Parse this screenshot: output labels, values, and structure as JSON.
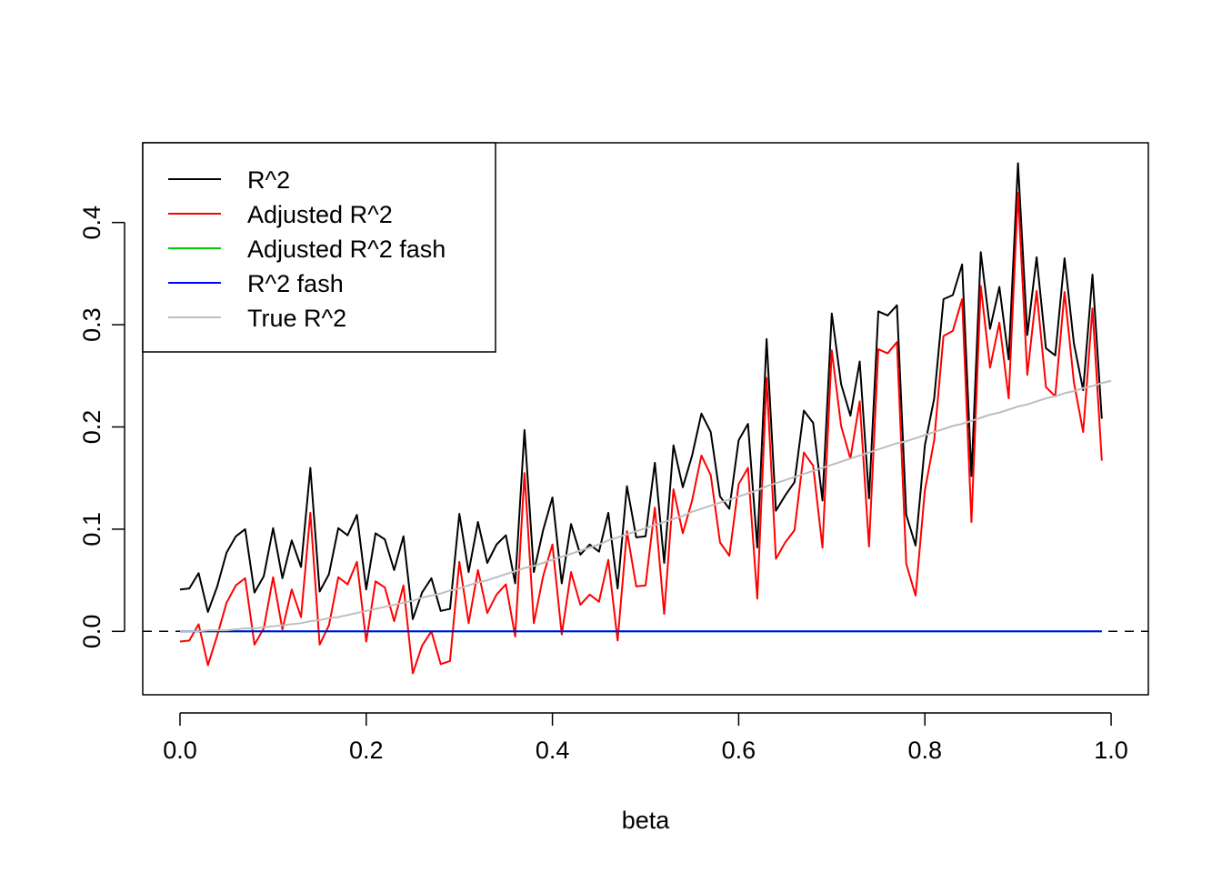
{
  "chart_data": {
    "type": "line",
    "title": "",
    "xlabel": "beta",
    "ylabel": "",
    "xlim": [
      -0.04,
      1.04
    ],
    "ylim": [
      -0.062,
      0.478
    ],
    "x_ticks": [
      0.0,
      0.2,
      0.4,
      0.6,
      0.8,
      1.0
    ],
    "x_tick_labels": [
      "0.0",
      "0.2",
      "0.4",
      "0.6",
      "0.8",
      "1.0"
    ],
    "y_ticks": [
      0.0,
      0.1,
      0.2,
      0.3,
      0.4
    ],
    "y_tick_labels": [
      "0.0",
      "0.1",
      "0.2",
      "0.3",
      "0.4"
    ],
    "x_start": 0.0,
    "x_step": 0.01,
    "reference_line": {
      "y": 0.0,
      "style": "dashed",
      "color": "#000000"
    },
    "legend_position": "top-left",
    "series": [
      {
        "name": "R^2",
        "color": "#000000",
        "values": [
          0.041,
          0.042,
          0.057,
          0.019,
          0.044,
          0.077,
          0.093,
          0.1,
          0.038,
          0.054,
          0.101,
          0.052,
          0.089,
          0.063,
          0.16,
          0.039,
          0.056,
          0.101,
          0.094,
          0.114,
          0.041,
          0.096,
          0.09,
          0.06,
          0.093,
          0.012,
          0.038,
          0.052,
          0.02,
          0.022,
          0.115,
          0.058,
          0.107,
          0.067,
          0.085,
          0.094,
          0.047,
          0.197,
          0.058,
          0.099,
          0.131,
          0.047,
          0.105,
          0.075,
          0.085,
          0.078,
          0.116,
          0.042,
          0.142,
          0.092,
          0.093,
          0.165,
          0.067,
          0.182,
          0.141,
          0.172,
          0.213,
          0.195,
          0.132,
          0.12,
          0.187,
          0.203,
          0.082,
          0.286,
          0.118,
          0.133,
          0.146,
          0.216,
          0.204,
          0.128,
          0.311,
          0.242,
          0.211,
          0.264,
          0.13,
          0.313,
          0.309,
          0.319,
          0.114,
          0.084,
          0.182,
          0.228,
          0.325,
          0.329,
          0.359,
          0.152,
          0.371,
          0.296,
          0.337,
          0.266,
          0.458,
          0.29,
          0.366,
          0.277,
          0.27,
          0.365,
          0.282,
          0.236,
          0.349,
          0.208
        ]
      },
      {
        "name": "Adjusted R^2",
        "color": "#ff0000",
        "values": [
          -0.01,
          -0.009,
          0.007,
          -0.033,
          -0.004,
          0.028,
          0.045,
          0.052,
          -0.013,
          0.003,
          0.053,
          0.002,
          0.041,
          0.014,
          0.116,
          -0.013,
          0.006,
          0.053,
          0.046,
          0.068,
          -0.01,
          0.049,
          0.043,
          0.01,
          0.045,
          -0.041,
          -0.014,
          0.0,
          -0.032,
          -0.029,
          0.068,
          0.008,
          0.06,
          0.018,
          0.036,
          0.046,
          -0.005,
          0.155,
          0.008,
          0.054,
          0.085,
          -0.003,
          0.058,
          0.026,
          0.036,
          0.029,
          0.07,
          -0.009,
          0.098,
          0.044,
          0.045,
          0.121,
          0.017,
          0.139,
          0.096,
          0.128,
          0.172,
          0.153,
          0.087,
          0.074,
          0.144,
          0.16,
          0.032,
          0.248,
          0.071,
          0.087,
          0.099,
          0.175,
          0.162,
          0.082,
          0.275,
          0.201,
          0.169,
          0.225,
          0.083,
          0.276,
          0.272,
          0.283,
          0.066,
          0.035,
          0.138,
          0.187,
          0.289,
          0.294,
          0.325,
          0.107,
          0.338,
          0.258,
          0.302,
          0.228,
          0.429,
          0.251,
          0.333,
          0.239,
          0.23,
          0.332,
          0.244,
          0.195,
          0.316,
          0.167
        ]
      },
      {
        "name": "Adjusted R^2 fash",
        "color": "#00cd00",
        "values": [
          0,
          0,
          0,
          0,
          0,
          0,
          0,
          0,
          0,
          0,
          0,
          0,
          0,
          0,
          0,
          0,
          0,
          0,
          0,
          0,
          0,
          0,
          0,
          0,
          0,
          0,
          0,
          0,
          0,
          0,
          0,
          0,
          0,
          0,
          0,
          0,
          0,
          0,
          0,
          0,
          0,
          0,
          0,
          0,
          0,
          0,
          0,
          0,
          0,
          0,
          0,
          0,
          0,
          0,
          0,
          0,
          0,
          0,
          0,
          0,
          0,
          0,
          0,
          0,
          0,
          0,
          0,
          0,
          0,
          0,
          0,
          0,
          0,
          0,
          0,
          0,
          0,
          0,
          0,
          0,
          0,
          0,
          0,
          0,
          0,
          0,
          0,
          0,
          0,
          0,
          0,
          0,
          0,
          0,
          0,
          0,
          0,
          0,
          0,
          0
        ]
      },
      {
        "name": "R^2 fash",
        "color": "#0000ff",
        "values": [
          0,
          0,
          0,
          0,
          0,
          0,
          0,
          0,
          0,
          0,
          0,
          0,
          0,
          0,
          0,
          0,
          0,
          0,
          0,
          0,
          0,
          0,
          0,
          0,
          0,
          0,
          0,
          0,
          0,
          0,
          0,
          0,
          0,
          0,
          0,
          0,
          0,
          0,
          0,
          0,
          0,
          0,
          0,
          0,
          0,
          0,
          0,
          0,
          0,
          0,
          0,
          0,
          0,
          0,
          0,
          0,
          0,
          0,
          0,
          0,
          0,
          0,
          0,
          0,
          0,
          0,
          0,
          0,
          0,
          0,
          0,
          0,
          0,
          0,
          0,
          0,
          0,
          0,
          0,
          0,
          0,
          0,
          0,
          0,
          0,
          0,
          0,
          0,
          0,
          0,
          0,
          0,
          0,
          0,
          0,
          0,
          0,
          0,
          0,
          0
        ]
      },
      {
        "name": "True R^2",
        "color": "#bebebe",
        "values": [
          0.0,
          0.0,
          0.0,
          0.001,
          0.001,
          0.001,
          0.002,
          0.003,
          0.003,
          0.004,
          0.005,
          0.006,
          0.007,
          0.008,
          0.01,
          0.011,
          0.013,
          0.014,
          0.016,
          0.018,
          0.02,
          0.022,
          0.024,
          0.026,
          0.028,
          0.03,
          0.033,
          0.035,
          0.037,
          0.04,
          0.042,
          0.045,
          0.048,
          0.05,
          0.053,
          0.056,
          0.059,
          0.062,
          0.064,
          0.067,
          0.07,
          0.073,
          0.076,
          0.079,
          0.082,
          0.085,
          0.089,
          0.092,
          0.095,
          0.098,
          0.101,
          0.104,
          0.107,
          0.11,
          0.113,
          0.117,
          0.12,
          0.123,
          0.126,
          0.129,
          0.132,
          0.135,
          0.138,
          0.142,
          0.145,
          0.148,
          0.151,
          0.154,
          0.157,
          0.16,
          0.163,
          0.166,
          0.169,
          0.172,
          0.175,
          0.178,
          0.181,
          0.184,
          0.186,
          0.189,
          0.192,
          0.195,
          0.198,
          0.201,
          0.203,
          0.206,
          0.209,
          0.212,
          0.214,
          0.217,
          0.22,
          0.222,
          0.225,
          0.228,
          0.23,
          0.233,
          0.235,
          0.238,
          0.24,
          0.243,
          0.245
        ]
      }
    ]
  }
}
